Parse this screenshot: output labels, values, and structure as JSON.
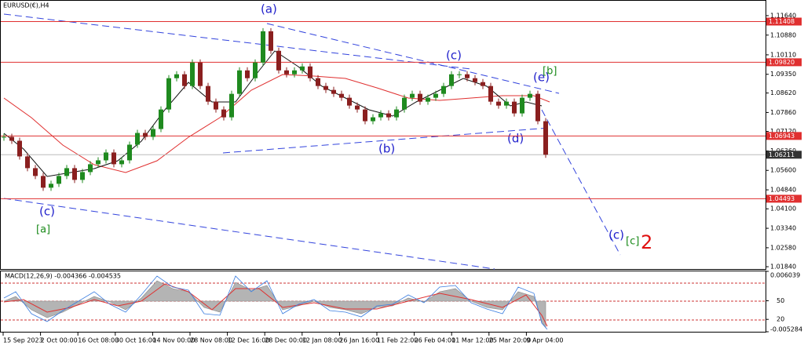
{
  "chart_data": {
    "type": "candlestick",
    "title": "EURUSD(€),H4",
    "dates": [
      "15 Sep 2023",
      "2 Oct 00:00",
      "16 Oct 08:00",
      "30 Oct 16:00",
      "14 Nov 00:00",
      "28 Nov 08:00",
      "12 Dec 16:00",
      "28 Dec 00:00",
      "12 Jan 08:00",
      "26 Jan 16:00",
      "11 Feb 22:00",
      "26 Feb 04:00",
      "11 Mar 12:00",
      "25 Mar 20:00",
      "9 Apr 04:00"
    ],
    "close": [
      1.06908,
      1.06756,
      1.06145,
      1.05687,
      1.05382,
      1.04924,
      1.05076,
      1.05382,
      1.05687,
      1.05229,
      1.05534,
      1.0584,
      1.05992,
      1.06298,
      1.0584,
      1.05992,
      1.06603,
      1.07061,
      1.06908,
      1.07214,
      1.07977,
      1.09198,
      1.09351,
      1.08893,
      1.09809,
      1.08893,
      1.08282,
      1.07977,
      1.07671,
      1.08587,
      1.09503,
      1.09198,
      1.09809,
      1.1103,
      1.10267,
      1.09503,
      1.09351,
      1.09503,
      1.09656,
      1.09198,
      1.08893,
      1.0874,
      1.08587,
      1.08435,
      1.08129,
      1.07977,
      1.07519,
      1.07671,
      1.07824,
      1.07671,
      1.07977,
      1.08435,
      1.08587,
      1.08282,
      1.08435,
      1.08587,
      1.08893,
      1.09351,
      1.09351,
      1.09198,
      1.09045,
      1.08893,
      1.08282,
      1.08129,
      1.08282,
      1.07824,
      1.08435,
      1.08587,
      1.07519,
      1.06211
    ],
    "up_color": "#1f8a1f",
    "down_color": "#8a1f1f",
    "ylim": [
      1.0172,
      1.1225
    ],
    "yticks": [
      {
        "value": 1.1164,
        "label": "1.11640"
      },
      {
        "value": 1.1088,
        "label": "1.10880"
      },
      {
        "value": 1.1011,
        "label": "1.10110"
      },
      {
        "value": 1.0935,
        "label": "1.09350"
      },
      {
        "value": 1.0862,
        "label": "1.08620"
      },
      {
        "value": 1.0786,
        "label": "1.07860"
      },
      {
        "value": 1.0712,
        "label": "1.07120"
      },
      {
        "value": 1.0636,
        "label": "1.06360"
      },
      {
        "value": 1.056,
        "label": "1.05600"
      },
      {
        "value": 1.0484,
        "label": "1.04840"
      },
      {
        "value": 1.041,
        "label": "1.04100"
      },
      {
        "value": 1.0334,
        "label": "1.03340"
      },
      {
        "value": 1.0258,
        "label": "1.02580"
      },
      {
        "value": 1.0184,
        "label": "1.01840"
      }
    ],
    "levels": [
      1.11408,
      {
        "value": 1.0982,
        "label": "1.09820"
      },
      1.06943,
      1.04493
    ],
    "current_price": 1.06211,
    "waves": [
      "(a)",
      "(c)",
      "(b)",
      "(d)",
      "(e)",
      "[b]",
      "(c)",
      "[a]",
      "(c)",
      "[c]",
      "2"
    ],
    "macd": {
      "label": "MACD(12,26,9) -0.004366 -0.004535",
      "ylim": [
        -0.005284,
        0.006039
      ],
      "yticks": [
        -0.005284,
        0.006039
      ],
      "overlay_ylim": [
        0,
        100
      ],
      "overlay_ticks": [
        50,
        20
      ]
    }
  }
}
